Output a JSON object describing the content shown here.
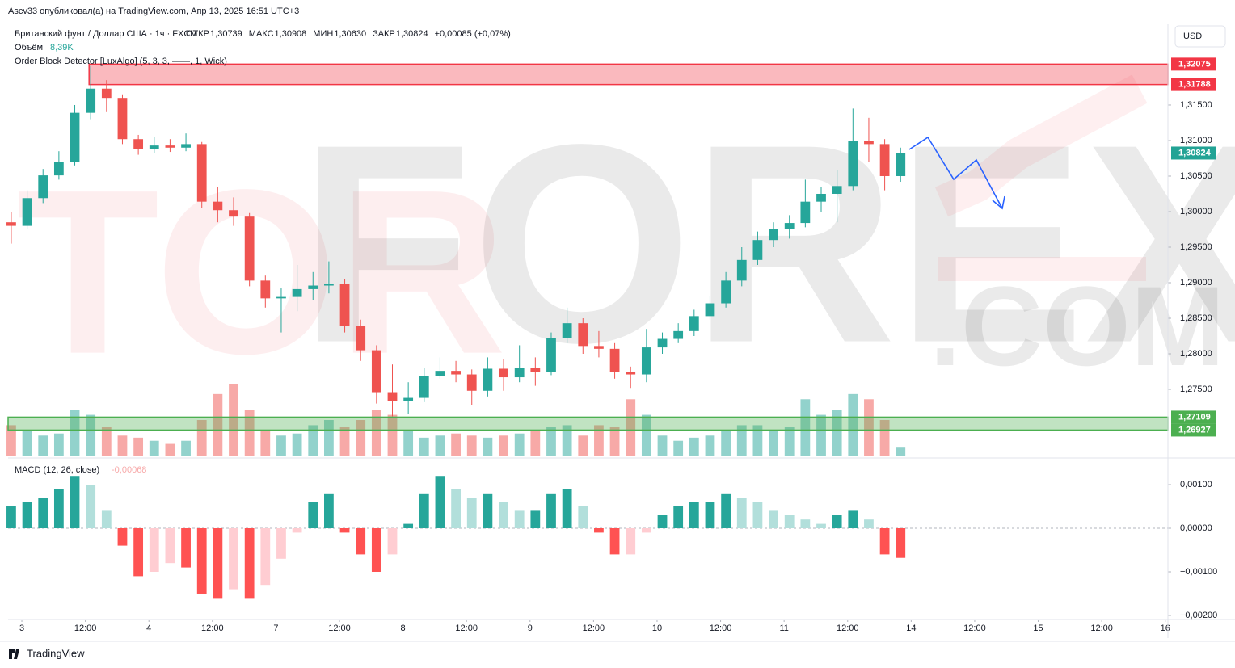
{
  "published": "Ascv33 опубликовал(а) на TradingView.com, Апр 13, 2025 16:51 UTC+3",
  "brand": "TradingView",
  "currency": "USD",
  "legend": {
    "symbol": "Британский фунт / Доллар США · 1ч · FXCM",
    "items": [
      {
        "name": "ОТКР",
        "value": "1,30739"
      },
      {
        "name": "МАКС",
        "value": "1,30908"
      },
      {
        "name": "МИН",
        "value": "1,30630"
      },
      {
        "name": "ЗАКР",
        "value": "1,30824"
      }
    ],
    "change": "+0,00085 (+0,07%)",
    "volume_name": "Объём",
    "volume_value": "8,39K",
    "indicator": "Order Block Detector [LuxAlgo] (5, 3, 3, ——, 1, Wick)",
    "macd_name": "MACD (12, 26, close)",
    "macd_value": "-0,00068"
  },
  "watermark": [
    "TOR",
    "FOREX",
    ".COM"
  ],
  "chart_data": {
    "type": "candlestick",
    "xlim": [
      -2.6,
      216.5
    ],
    "xticks": [
      {
        "value": 0,
        "label": "3"
      },
      {
        "value": 12,
        "label": "12:00"
      },
      {
        "value": 24,
        "label": "4"
      },
      {
        "value": 36,
        "label": "12:00"
      },
      {
        "value": 48,
        "label": "7"
      },
      {
        "value": 60,
        "label": "12:00"
      },
      {
        "value": 72,
        "label": "8"
      },
      {
        "value": 84,
        "label": "12:00"
      },
      {
        "value": 96,
        "label": "9"
      },
      {
        "value": 108,
        "label": "12:00"
      },
      {
        "value": 120,
        "label": "10"
      },
      {
        "value": 132,
        "label": "12:00"
      },
      {
        "value": 144,
        "label": "11"
      },
      {
        "value": 156,
        "label": "12:00"
      },
      {
        "value": 168,
        "label": "14"
      },
      {
        "value": 180,
        "label": "12:00"
      },
      {
        "value": 192,
        "label": "15"
      },
      {
        "value": 204,
        "label": "12:00"
      },
      {
        "value": 216,
        "label": "16"
      }
    ],
    "ylim": [
      1.26557,
      1.32636
    ],
    "yticks": [
      {
        "value": 1.275,
        "label": "1,27500"
      },
      {
        "value": 1.28,
        "label": "1,28000"
      },
      {
        "value": 1.285,
        "label": "1,28500"
      },
      {
        "value": 1.29,
        "label": "1,29000"
      },
      {
        "value": 1.295,
        "label": "1,29500"
      },
      {
        "value": 1.3,
        "label": "1,30000"
      },
      {
        "value": 1.305,
        "label": "1,30500"
      },
      {
        "value": 1.31,
        "label": "1,31000"
      },
      {
        "value": 1.315,
        "label": "1,31500"
      }
    ],
    "up_color": "#26a69a",
    "down_color": "#ef5350",
    "x": [
      -2,
      1,
      4,
      7,
      10,
      13,
      16,
      19,
      22,
      25,
      28,
      31,
      34,
      37,
      40,
      43,
      46,
      49,
      52,
      55,
      58,
      61,
      64,
      67,
      70,
      73,
      76,
      79,
      82,
      85,
      88,
      91,
      94,
      97,
      100,
      103,
      106,
      109,
      112,
      115,
      118,
      121,
      124,
      127,
      130,
      133,
      136,
      139,
      142,
      145,
      148,
      151,
      154,
      157,
      160,
      163,
      166
    ],
    "open": [
      1.2985,
      1.298,
      1.3019,
      1.3051,
      1.307,
      1.3139,
      1.3173,
      1.316,
      1.3102,
      1.3088,
      1.3093,
      1.309,
      1.3095,
      1.3014,
      1.3002,
      1.2993,
      1.2903,
      1.2878,
      1.288,
      1.2891,
      1.2896,
      1.2898,
      1.2839,
      1.2805,
      1.2746,
      1.2734,
      1.2738,
      1.2769,
      1.2776,
      1.2771,
      1.2748,
      1.2779,
      1.2767,
      1.278,
      1.2775,
      1.2822,
      1.2843,
      1.2811,
      1.2807,
      1.2774,
      1.2771,
      1.2809,
      1.2821,
      1.2832,
      1.2853,
      1.2871,
      1.2903,
      1.2932,
      1.296,
      1.2975,
      1.2984,
      1.3014,
      1.3025,
      1.3036,
      1.3099,
      1.3095,
      1.305
    ],
    "high": [
      1.3,
      1.303,
      1.306,
      1.3085,
      1.315,
      1.3205,
      1.3185,
      1.3165,
      1.3108,
      1.3105,
      1.3102,
      1.311,
      1.3098,
      1.3035,
      1.302,
      1.2998,
      1.291,
      1.2892,
      1.2925,
      1.2915,
      1.293,
      1.2905,
      1.2848,
      1.2812,
      1.2785,
      1.276,
      1.278,
      1.2795,
      1.279,
      1.2778,
      1.2795,
      1.2792,
      1.2812,
      1.2795,
      1.283,
      1.2865,
      1.285,
      1.2832,
      1.2815,
      1.2782,
      1.2835,
      1.283,
      1.2843,
      1.2862,
      1.2882,
      1.2915,
      1.295,
      1.2972,
      1.2985,
      1.2995,
      1.3045,
      1.3035,
      1.3058,
      1.3145,
      1.3132,
      1.3102,
      1.309
    ],
    "low": [
      1.2955,
      1.2975,
      1.3012,
      1.3045,
      1.3065,
      1.313,
      1.314,
      1.3095,
      1.308,
      1.3082,
      1.3084,
      1.3085,
      1.3005,
      1.2985,
      1.298,
      1.2895,
      1.2865,
      1.283,
      1.286,
      1.2875,
      1.2885,
      1.283,
      1.279,
      1.273,
      1.2712,
      1.2715,
      1.2732,
      1.2765,
      1.276,
      1.2728,
      1.274,
      1.2748,
      1.276,
      1.2755,
      1.277,
      1.2815,
      1.28,
      1.2795,
      1.2765,
      1.2752,
      1.276,
      1.28,
      1.2815,
      1.2825,
      1.2848,
      1.2865,
      1.2895,
      1.2925,
      1.295,
      1.2962,
      1.2978,
      1.3,
      1.2985,
      1.303,
      1.307,
      1.303,
      1.3042
    ],
    "close": [
      1.298,
      1.3019,
      1.3051,
      1.307,
      1.3139,
      1.3173,
      1.316,
      1.3102,
      1.3088,
      1.3093,
      1.309,
      1.3095,
      1.3014,
      1.3002,
      1.2993,
      1.2903,
      1.2878,
      1.288,
      1.2891,
      1.2896,
      1.2898,
      1.2839,
      1.2805,
      1.2746,
      1.2734,
      1.2738,
      1.2769,
      1.2776,
      1.2771,
      1.2748,
      1.2779,
      1.2767,
      1.278,
      1.2775,
      1.2822,
      1.2843,
      1.2811,
      1.2807,
      1.2774,
      1.2771,
      1.2809,
      1.2821,
      1.2832,
      1.2853,
      1.2871,
      1.2903,
      1.2932,
      1.296,
      1.2975,
      1.2984,
      1.3014,
      1.3025,
      1.3036,
      1.3099,
      1.3095,
      1.305,
      1.30824
    ],
    "last_price": {
      "value": 1.30824,
      "label": "1,30824",
      "color": "#22a395"
    },
    "zones": [
      {
        "x_start": 12.7,
        "top": {
          "value": 1.32075,
          "label": "1,32075"
        },
        "bottom": {
          "value": 1.31788,
          "label": "1,31788"
        },
        "color": "#f23645"
      },
      {
        "x_start": -2.6,
        "top": {
          "value": 1.27109,
          "label": "1,27109"
        },
        "bottom": {
          "value": 1.26927,
          "label": "1,26927"
        },
        "color": "#4caf50"
      }
    ],
    "volume": {
      "values": [
        30,
        25,
        20,
        22,
        45,
        40,
        28,
        20,
        18,
        15,
        12,
        15,
        35,
        60,
        70,
        45,
        25,
        20,
        22,
        30,
        35,
        28,
        35,
        45,
        40,
        25,
        18,
        20,
        22,
        20,
        18,
        20,
        22,
        25,
        28,
        30,
        20,
        30,
        28,
        55,
        40,
        20,
        15,
        18,
        20,
        25,
        30,
        30,
        25,
        28,
        55,
        40,
        45,
        60,
        55,
        35,
        8.39
      ]
    },
    "macd": {
      "ylim": [
        -0.002056,
        0.001556
      ],
      "yticks": [
        {
          "value": 0.001,
          "label": "0,00100"
        },
        {
          "value": 0,
          "label": "0,00000"
        },
        {
          "value": -0.001,
          "label": "−0,00100"
        },
        {
          "value": -0.002,
          "label": "−0,00200"
        }
      ],
      "colors": [
        "#26a69a",
        "#b2dfdb",
        "#ff5252",
        "#ffcdd2"
      ],
      "values": [
        0.0005,
        0.0006,
        0.0007,
        0.0009,
        0.0012,
        0.001,
        0.0004,
        -0.0004,
        -0.0011,
        -0.001,
        -0.0008,
        -0.0009,
        -0.0015,
        -0.0016,
        -0.0014,
        -0.0016,
        -0.0013,
        -0.0007,
        -0.0001,
        0.0006,
        0.0008,
        -0.0001,
        -0.0006,
        -0.001,
        -0.0006,
        0.0001,
        0.0008,
        0.0012,
        0.0009,
        0.0007,
        0.0008,
        0.0006,
        0.0004,
        0.0004,
        0.0008,
        0.0009,
        0.0005,
        -0.0001,
        -0.0006,
        -0.0006,
        -0.0001,
        0.0003,
        0.0005,
        0.0006,
        0.0006,
        0.0008,
        0.0007,
        0.0006,
        0.0004,
        0.0003,
        0.0002,
        0.0001,
        0.0003,
        0.0004,
        0.0002,
        -0.0006,
        -0.00068
      ]
    }
  }
}
